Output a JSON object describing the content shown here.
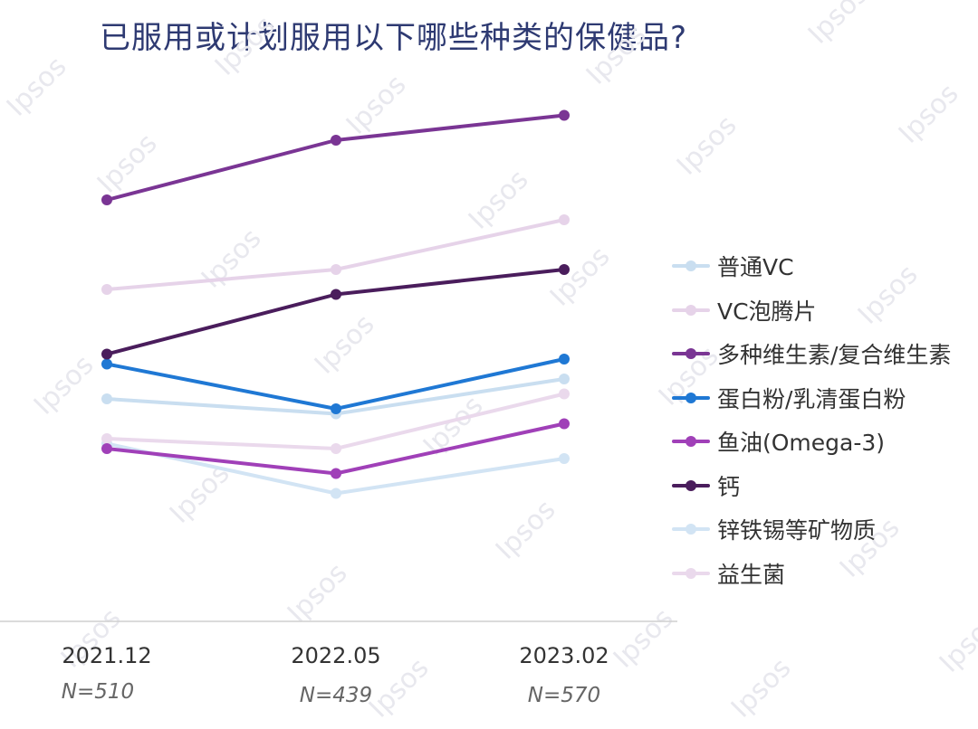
{
  "title": "已服用或计划服用以下哪些种类的保健品?",
  "watermark": "Ipsos",
  "colors": {
    "title": "#2e3a72",
    "axis": "#cfcfcf"
  },
  "chart_data": {
    "type": "line",
    "title": "已服用或计划服用以下哪些种类的保健品?",
    "x": [
      "2021.12",
      "2022.05",
      "2023.02"
    ],
    "sample_sizes": [
      "N=510",
      "N=439",
      "N=570"
    ],
    "ylim": [
      0,
      100
    ],
    "grid": false,
    "legend_position": "right",
    "series": [
      {
        "name": "普通VC",
        "color": "#c9def0",
        "values": [
          38,
          35,
          42
        ]
      },
      {
        "name": "VC泡腾片",
        "color": "#e6d3e9",
        "values": [
          60,
          64,
          74
        ]
      },
      {
        "name": "多种维生素/复合维生素",
        "color": "#7a3594",
        "values": [
          78,
          90,
          95
        ]
      },
      {
        "name": "蛋白粉/乳清蛋白粉",
        "color": "#1f78d4",
        "values": [
          45,
          36,
          46
        ]
      },
      {
        "name": "鱼油(Omega-3)",
        "color": "#a040b8",
        "values": [
          28,
          23,
          33
        ]
      },
      {
        "name": "钙",
        "color": "#4a1d5c",
        "values": [
          47,
          59,
          64
        ]
      },
      {
        "name": "锌铁锡等矿物质",
        "color": "#d2e4f4",
        "values": [
          29,
          19,
          26
        ]
      },
      {
        "name": "益生菌",
        "color": "#ead9ec",
        "values": [
          30,
          28,
          39
        ]
      }
    ]
  }
}
